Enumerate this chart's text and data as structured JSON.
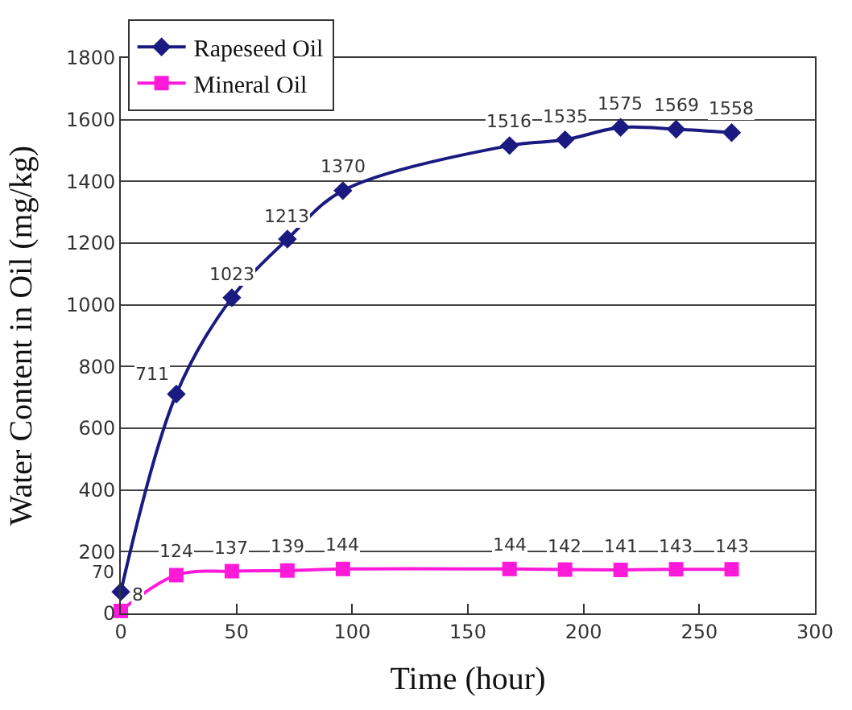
{
  "chart_data": {
    "type": "line",
    "xlabel": "Time (hour)",
    "ylabel": "Water Content in Oil (mg/kg)",
    "x": [
      0,
      24,
      48,
      72,
      96,
      168,
      192,
      216,
      240,
      264
    ],
    "series": [
      {
        "name": "Rapeseed Oil",
        "color": "#1a1a80",
        "marker": "diamond",
        "values": [
          70,
          711,
          1023,
          1213,
          1370,
          1516,
          1535,
          1575,
          1569,
          1558
        ]
      },
      {
        "name": "Mineral Oil",
        "color": "#ff1ad9",
        "marker": "square",
        "values": [
          8,
          124,
          137,
          139,
          144,
          144,
          142,
          141,
          143,
          143
        ]
      }
    ],
    "xlim": [
      0,
      300
    ],
    "xticks": [
      0,
      50,
      100,
      150,
      200,
      250,
      300
    ],
    "ylim": [
      0,
      1800
    ],
    "yticks": [
      0,
      200,
      400,
      600,
      800,
      1000,
      1200,
      1400,
      1600,
      1800
    ],
    "grid": "y",
    "legend": "top left",
    "data_labels": true
  }
}
